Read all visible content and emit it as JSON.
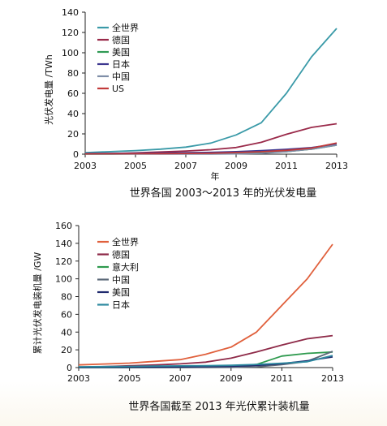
{
  "chart_data": [
    {
      "type": "line",
      "title": "世界各国 2003～2013 年的光伏发电量",
      "xlabel": "年",
      "ylabel": "光伏发电量 /TWh",
      "xlim": [
        2003,
        2013
      ],
      "ylim": [
        0,
        140
      ],
      "x_ticks": [
        "2003",
        "2005",
        "2007",
        "2009",
        "2011",
        "2013"
      ],
      "y_ticks": [
        "0",
        "20",
        "40",
        "60",
        "80",
        "100",
        "120",
        "140"
      ],
      "grid": false,
      "legend_position": "top-left",
      "x": [
        2003,
        2004,
        2005,
        2006,
        2007,
        2008,
        2009,
        2010,
        2011,
        2012,
        2013
      ],
      "series": [
        {
          "name": "全世界",
          "color": "#3a9aa8",
          "values": [
            1.5,
            2.5,
            3.5,
            5,
            7,
            11,
            19,
            31,
            60,
            96,
            124
          ]
        },
        {
          "name": "德国",
          "color": "#9a2a4a",
          "values": [
            0.3,
            0.6,
            1.3,
            2.2,
            3.1,
            4.4,
            6.6,
            11.7,
            19.6,
            26.4,
            30
          ]
        },
        {
          "name": "美国",
          "color": "#2f9a54",
          "values": [
            0.2,
            0.2,
            0.3,
            0.3,
            0.4,
            0.6,
            0.9,
            1.5,
            2.5,
            5.0,
            9.0
          ]
        },
        {
          "name": "日本",
          "color": "#3d3790",
          "values": [
            0.6,
            0.8,
            1.0,
            1.2,
            1.5,
            1.8,
            2.5,
            3.5,
            4.8,
            6.5,
            10
          ]
        },
        {
          "name": "中国",
          "color": "#7f8ea8",
          "values": [
            0.1,
            0.1,
            0.1,
            0.1,
            0.1,
            0.2,
            0.3,
            0.8,
            2.5,
            5.0,
            9.0
          ]
        },
        {
          "name": "US",
          "color": "#c23a3a",
          "values": [
            0.3,
            0.4,
            0.5,
            0.6,
            0.7,
            1.0,
            1.6,
            2.4,
            3.8,
            6.0,
            11
          ]
        }
      ]
    },
    {
      "type": "line",
      "title": "世界各国截至 2013 年光伏累计装机量",
      "xlabel": "",
      "ylabel": "累计光伏发电装机量 /GW",
      "xlim": [
        2003,
        2013
      ],
      "ylim": [
        0,
        160
      ],
      "x_ticks": [
        "2003",
        "2005",
        "2007",
        "2009",
        "2011",
        "2013"
      ],
      "y_ticks": [
        "0",
        "20",
        "40",
        "60",
        "80",
        "100",
        "120",
        "140",
        "160"
      ],
      "grid": false,
      "legend_position": "top-left",
      "x": [
        2003,
        2004,
        2005,
        2006,
        2007,
        2008,
        2009,
        2010,
        2011,
        2012,
        2013
      ],
      "series": [
        {
          "name": "全世界",
          "color": "#e0603c",
          "values": [
            3,
            4,
            5,
            7,
            9,
            15,
            23,
            40,
            70,
            100,
            139
          ]
        },
        {
          "name": "德国",
          "color": "#8e2a48",
          "values": [
            0.4,
            1.1,
            2.0,
            2.9,
            4.2,
            6.1,
            10.6,
            17.6,
            25.4,
            32.5,
            36
          ]
        },
        {
          "name": "意大利",
          "color": "#2e9a4e",
          "values": [
            0,
            0,
            0,
            0.1,
            0.1,
            0.5,
            1.2,
            3.5,
            13,
            16,
            17.6
          ]
        },
        {
          "name": "中国",
          "color": "#5b6878",
          "values": [
            0.1,
            0.1,
            0.1,
            0.1,
            0.1,
            0.2,
            0.3,
            0.8,
            3.3,
            7,
            18.3
          ]
        },
        {
          "name": "美国",
          "color": "#1f2a6e",
          "values": [
            0.3,
            0.4,
            0.5,
            0.6,
            0.8,
            1.2,
            1.6,
            2.5,
            4.4,
            7.7,
            12
          ]
        },
        {
          "name": "日本",
          "color": "#2e8aa0",
          "values": [
            0.9,
            1.1,
            1.4,
            1.7,
            1.9,
            2.1,
            2.6,
            3.6,
            4.9,
            6.6,
            13.6
          ]
        }
      ]
    }
  ]
}
